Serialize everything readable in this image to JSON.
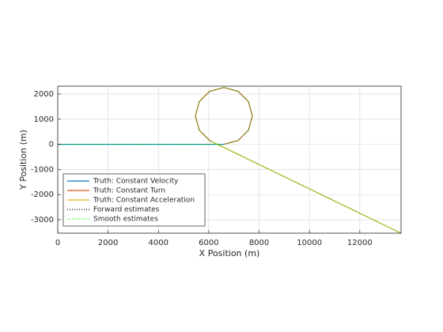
{
  "chart_data": {
    "type": "line",
    "xlabel": "X Position (m)",
    "ylabel": "Y Position (m)",
    "xlim": [
      0,
      13640
    ],
    "ylim": [
      -3535,
      2314
    ],
    "xticks": [
      0,
      2000,
      4000,
      6000,
      8000,
      10000,
      12000
    ],
    "yticks": [
      -3000,
      -2000,
      -1000,
      0,
      1000,
      2000
    ],
    "grid": true,
    "legend_position": "southwest",
    "series": [
      {
        "name": "Truth: Constant Velocity",
        "color": "#0072bd",
        "style": "solid",
        "x": [
          0,
          6600
        ],
        "y": [
          0,
          0
        ]
      },
      {
        "name": "Truth: Constant Turn",
        "color": "#d95319",
        "style": "solid",
        "x": [
          6600,
          7165,
          7579,
          7730,
          7579,
          7165,
          6600,
          6035,
          5621,
          5470,
          5621,
          6035,
          6105
        ],
        "y": [
          0,
          151,
          565,
          1130,
          1695,
          2109,
          2260,
          2109,
          1695,
          1130,
          565,
          151,
          114
        ]
      },
      {
        "name": "Truth: Constant Acceleration",
        "color": "#edb120",
        "style": "solid",
        "x": [
          6105,
          13640
        ],
        "y": [
          114,
          -3535
        ]
      },
      {
        "name": "Forward estimates",
        "color": "#000000",
        "style": "dotted",
        "x": [
          0,
          6600,
          7165,
          7579,
          7730,
          7579,
          7165,
          6600,
          6035,
          5621,
          5470,
          5621,
          6035,
          6105,
          13640
        ],
        "y": [
          0,
          0,
          151,
          565,
          1130,
          1695,
          2109,
          2260,
          2109,
          1695,
          1130,
          565,
          151,
          114,
          -3535
        ]
      },
      {
        "name": "Smooth estimates",
        "color": "#00ff00",
        "style": "dotted",
        "x": [
          0,
          6600,
          7165,
          7579,
          7730,
          7579,
          7165,
          6600,
          6035,
          5621,
          5470,
          5621,
          6035,
          6105,
          13640
        ],
        "y": [
          0,
          0,
          151,
          565,
          1130,
          1695,
          2109,
          2260,
          2109,
          1695,
          1130,
          565,
          151,
          114,
          -3535
        ]
      }
    ]
  }
}
